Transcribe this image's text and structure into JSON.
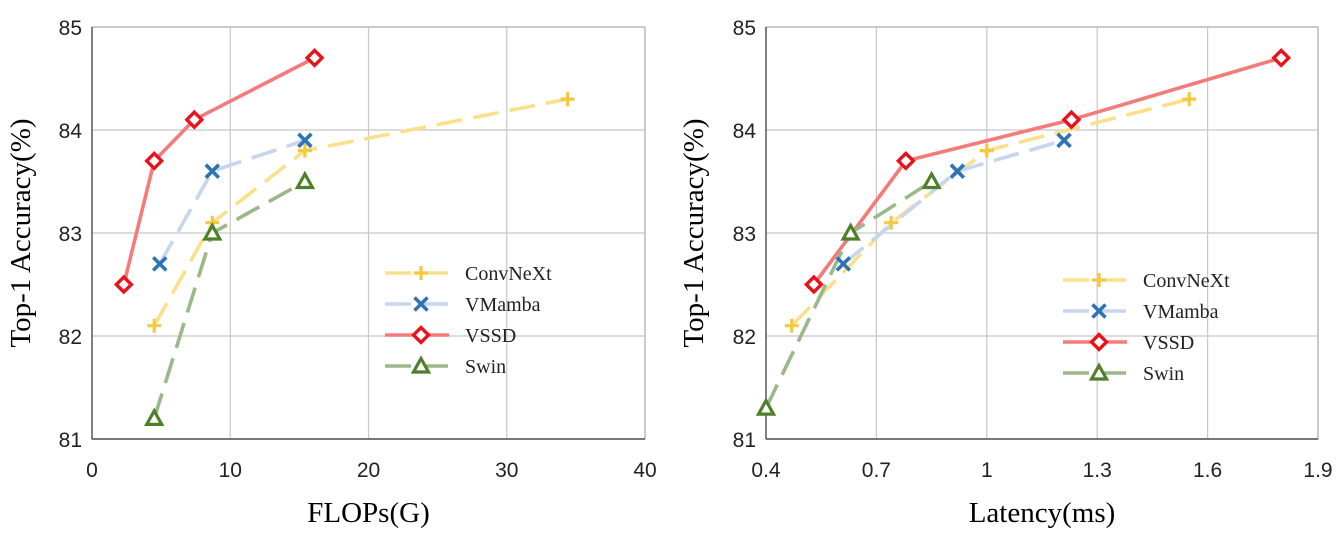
{
  "chart_data": [
    {
      "type": "line",
      "xlabel": "FLOPs(G)",
      "ylabel": "Top-1 Accuracy(%)",
      "xlim": [
        0,
        40
      ],
      "ylim": [
        81,
        85
      ],
      "xticks": [
        0,
        10,
        20,
        30,
        40
      ],
      "yticks": [
        81,
        82,
        83,
        84,
        85
      ],
      "xtick_labels": [
        "0",
        "10",
        "20",
        "30",
        "40"
      ],
      "ytick_labels": [
        "81",
        "82",
        "83",
        "84",
        "85"
      ],
      "grid": true,
      "legend_position": "bottom-right",
      "series": [
        {
          "name": "ConvNeXt",
          "color": "#f5c842",
          "line_color": "#fbe08a",
          "marker": "plus",
          "dashed": true,
          "x": [
            4.5,
            8.7,
            15.4,
            34.4
          ],
          "y": [
            82.1,
            83.1,
            83.8,
            84.3
          ]
        },
        {
          "name": "VMamba",
          "color": "#2e74b5",
          "line_color": "#c6d6ee",
          "marker": "x",
          "dashed": true,
          "x": [
            4.9,
            8.7,
            15.4
          ],
          "y": [
            82.7,
            83.6,
            83.9
          ]
        },
        {
          "name": "VSSD",
          "color": "#e8141c",
          "line_color": "#f57a7a",
          "marker": "diamond",
          "dashed": false,
          "x": [
            2.3,
            4.5,
            7.4,
            16.1
          ],
          "y": [
            82.5,
            83.7,
            84.1,
            84.7
          ]
        },
        {
          "name": "Swin",
          "color": "#4f7f28",
          "line_color": "#9bb88a",
          "marker": "triangle",
          "dashed": true,
          "x": [
            4.5,
            8.7,
            15.4
          ],
          "y": [
            81.2,
            83.0,
            83.5
          ]
        }
      ]
    },
    {
      "type": "line",
      "xlabel": "Latency(ms)",
      "ylabel": "Top-1 Accuracy(%)",
      "xlim": [
        0.4,
        1.9
      ],
      "ylim": [
        81,
        85
      ],
      "xticks": [
        0.4,
        0.7,
        1.0,
        1.3,
        1.6,
        1.9
      ],
      "yticks": [
        81,
        82,
        83,
        84,
        85
      ],
      "xtick_labels": [
        "0.4",
        "0.7",
        "1",
        "1.3",
        "1.6",
        "1.9"
      ],
      "ytick_labels": [
        "81",
        "82",
        "83",
        "84",
        "85"
      ],
      "grid": true,
      "legend_position": "bottom-right",
      "series": [
        {
          "name": "ConvNeXt",
          "color": "#f5c842",
          "line_color": "#fbe08a",
          "marker": "plus",
          "dashed": true,
          "x": [
            0.47,
            0.74,
            1.0,
            1.55
          ],
          "y": [
            82.1,
            83.1,
            83.8,
            84.3
          ]
        },
        {
          "name": "VMamba",
          "color": "#2e74b5",
          "line_color": "#c6d6ee",
          "marker": "x",
          "dashed": true,
          "x": [
            0.61,
            0.92,
            1.21
          ],
          "y": [
            82.7,
            83.6,
            83.9
          ]
        },
        {
          "name": "VSSD",
          "color": "#e8141c",
          "line_color": "#f57a7a",
          "marker": "diamond",
          "dashed": false,
          "x": [
            0.53,
            0.78,
            1.23,
            1.8
          ],
          "y": [
            82.5,
            83.7,
            84.1,
            84.7
          ]
        },
        {
          "name": "Swin",
          "color": "#4f7f28",
          "line_color": "#9bb88a",
          "marker": "triangle",
          "dashed": true,
          "x": [
            0.4,
            0.63,
            0.85
          ],
          "y": [
            81.3,
            83.0,
            83.5
          ]
        }
      ]
    }
  ]
}
